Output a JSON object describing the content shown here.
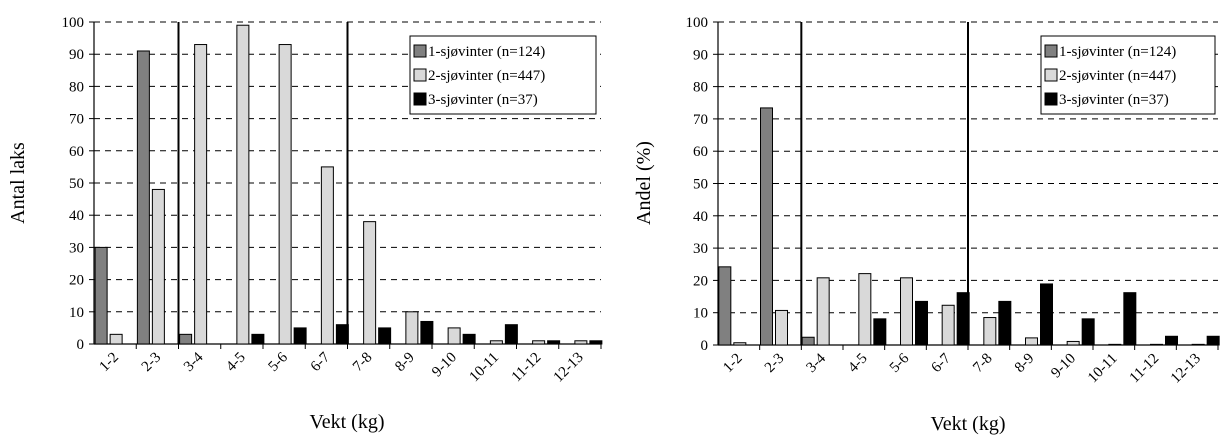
{
  "colors": {
    "series1": "#808080",
    "series2": "#d9d9d9",
    "series3": "#000000"
  },
  "chart_data": [
    {
      "type": "bar",
      "xlabel": "Vekt (kg)",
      "ylabel": "Antal laks",
      "ylim": [
        0,
        100
      ],
      "yticks": [
        0,
        10,
        20,
        30,
        40,
        50,
        60,
        70,
        80,
        90,
        100
      ],
      "grid": "horizontal-dashed",
      "legend_position": "top-right",
      "divider_after_categories": [
        2,
        6
      ],
      "categories": [
        "1-2",
        "2-3",
        "3-4",
        "4-5",
        "5-6",
        "6-7",
        "7-8",
        "8-9",
        "9-10",
        "10-11",
        "11-12",
        "12-13"
      ],
      "series": [
        {
          "name": "1-sjøvinter (n=124)",
          "values": [
            30,
            91,
            3,
            0,
            0,
            0,
            0,
            0,
            0,
            0,
            0,
            0
          ]
        },
        {
          "name": "2-sjøvinter (n=447)",
          "values": [
            3,
            48,
            93,
            99,
            93,
            55,
            38,
            10,
            5,
            1,
            1,
            1
          ]
        },
        {
          "name": "3-sjøvinter (n=37)",
          "values": [
            0,
            0,
            0,
            3,
            5,
            6,
            5,
            7,
            3,
            6,
            1,
            1
          ]
        }
      ]
    },
    {
      "type": "bar",
      "xlabel": "Vekt (kg)",
      "ylabel": "Andel (%)",
      "ylim": [
        0,
        100
      ],
      "yticks": [
        0,
        10,
        20,
        30,
        40,
        50,
        60,
        70,
        80,
        90,
        100
      ],
      "grid": "horizontal-dashed",
      "legend_position": "top-right",
      "divider_after_categories": [
        2,
        6
      ],
      "categories": [
        "1-2",
        "2-3",
        "3-4",
        "4-5",
        "5-6",
        "6-7",
        "7-8",
        "8-9",
        "9-10",
        "10-11",
        "11-12",
        "12-13"
      ],
      "series": [
        {
          "name": "1-sjøvinter (n=124)",
          "values": [
            24.2,
            73.4,
            2.4,
            0,
            0,
            0,
            0,
            0,
            0,
            0,
            0,
            0
          ]
        },
        {
          "name": "2-sjøvinter (n=447)",
          "values": [
            0.7,
            10.7,
            20.8,
            22.1,
            20.8,
            12.3,
            8.5,
            2.2,
            1.1,
            0.2,
            0.2,
            0.2
          ]
        },
        {
          "name": "3-sjøvinter (n=37)",
          "values": [
            0,
            0,
            0,
            8.1,
            13.5,
            16.2,
            13.5,
            18.9,
            8.1,
            16.2,
            2.7,
            2.7
          ]
        }
      ]
    }
  ]
}
